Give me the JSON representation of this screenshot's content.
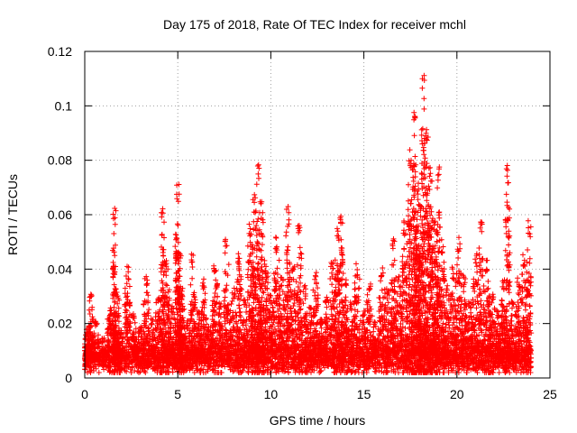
{
  "chart_data": {
    "type": "scatter",
    "title": "Day 175 of 2018, Rate Of TEC Index for receiver mchl",
    "xlabel": "GPS time / hours",
    "ylabel": "ROTI / TECUs",
    "xlim": [
      0,
      25
    ],
    "ylim": [
      0,
      0.12
    ],
    "xticks": [
      0,
      5,
      10,
      15,
      20,
      25
    ],
    "yticks": [
      0,
      0.02,
      0.04,
      0.06,
      0.08,
      0.1,
      0.12
    ],
    "xtick_labels": [
      "0",
      "5",
      "10",
      "15",
      "20",
      "25"
    ],
    "ytick_labels": [
      "0",
      "0.02",
      "0.04",
      "0.06",
      "0.08",
      "0.1",
      "0.12"
    ],
    "grid": true,
    "marker": "+",
    "color": "#ff0000",
    "series": [
      {
        "name": "ROTI",
        "x": [
          0.1,
          0.3,
          0.6,
          1.0,
          1.4,
          1.6,
          1.7,
          2.0,
          2.3,
          2.6,
          3.0,
          3.3,
          3.6,
          4.0,
          4.2,
          4.4,
          4.7,
          5.0,
          5.1,
          5.2,
          5.5,
          5.8,
          6.1,
          6.4,
          6.7,
          7.0,
          7.3,
          7.6,
          8.0,
          8.3,
          8.6,
          8.9,
          9.1,
          9.3,
          9.5,
          9.7,
          10.0,
          10.3,
          10.6,
          10.9,
          11.2,
          11.5,
          11.8,
          12.1,
          12.4,
          12.7,
          13.0,
          13.3,
          13.6,
          13.8,
          14.0,
          14.3,
          14.6,
          15.0,
          15.3,
          15.6,
          16.0,
          16.3,
          16.6,
          16.9,
          17.2,
          17.5,
          17.7,
          17.9,
          18.0,
          18.2,
          18.4,
          18.6,
          18.8,
          19.0,
          19.2,
          19.5,
          19.8,
          20.1,
          20.4,
          20.7,
          21.0,
          21.3,
          21.6,
          21.9,
          22.2,
          22.5,
          22.7,
          23.0,
          23.3,
          23.6,
          23.9
        ],
        "y": [
          0.018,
          0.032,
          0.021,
          0.015,
          0.026,
          0.064,
          0.034,
          0.018,
          0.041,
          0.024,
          0.019,
          0.038,
          0.022,
          0.031,
          0.063,
          0.044,
          0.027,
          0.072,
          0.048,
          0.033,
          0.021,
          0.046,
          0.025,
          0.037,
          0.019,
          0.042,
          0.028,
          0.051,
          0.033,
          0.047,
          0.029,
          0.058,
          0.068,
          0.079,
          0.066,
          0.044,
          0.031,
          0.052,
          0.038,
          0.063,
          0.041,
          0.058,
          0.034,
          0.026,
          0.039,
          0.022,
          0.031,
          0.044,
          0.056,
          0.062,
          0.037,
          0.028,
          0.042,
          0.025,
          0.036,
          0.021,
          0.041,
          0.033,
          0.053,
          0.038,
          0.058,
          0.085,
          0.101,
          0.072,
          0.064,
          0.112,
          0.097,
          0.078,
          0.061,
          0.079,
          0.052,
          0.034,
          0.041,
          0.052,
          0.038,
          0.029,
          0.046,
          0.059,
          0.044,
          0.031,
          0.025,
          0.036,
          0.081,
          0.029,
          0.037,
          0.046,
          0.059
        ],
        "baseline": [
          0.012,
          0.014,
          0.011,
          0.01,
          0.013,
          0.015,
          0.014,
          0.012,
          0.013,
          0.012,
          0.011,
          0.013,
          0.012,
          0.013,
          0.014,
          0.015,
          0.013,
          0.016,
          0.015,
          0.014,
          0.013,
          0.014,
          0.012,
          0.013,
          0.012,
          0.014,
          0.013,
          0.015,
          0.014,
          0.016,
          0.014,
          0.017,
          0.018,
          0.019,
          0.018,
          0.016,
          0.014,
          0.017,
          0.015,
          0.016,
          0.015,
          0.016,
          0.014,
          0.013,
          0.014,
          0.012,
          0.013,
          0.014,
          0.015,
          0.016,
          0.014,
          0.012,
          0.013,
          0.012,
          0.013,
          0.011,
          0.013,
          0.013,
          0.015,
          0.014,
          0.016,
          0.018,
          0.021,
          0.02,
          0.019,
          0.022,
          0.02,
          0.018,
          0.016,
          0.017,
          0.015,
          0.013,
          0.014,
          0.015,
          0.014,
          0.012,
          0.014,
          0.015,
          0.014,
          0.012,
          0.011,
          0.012,
          0.013,
          0.011,
          0.012,
          0.013,
          0.014
        ]
      }
    ]
  }
}
